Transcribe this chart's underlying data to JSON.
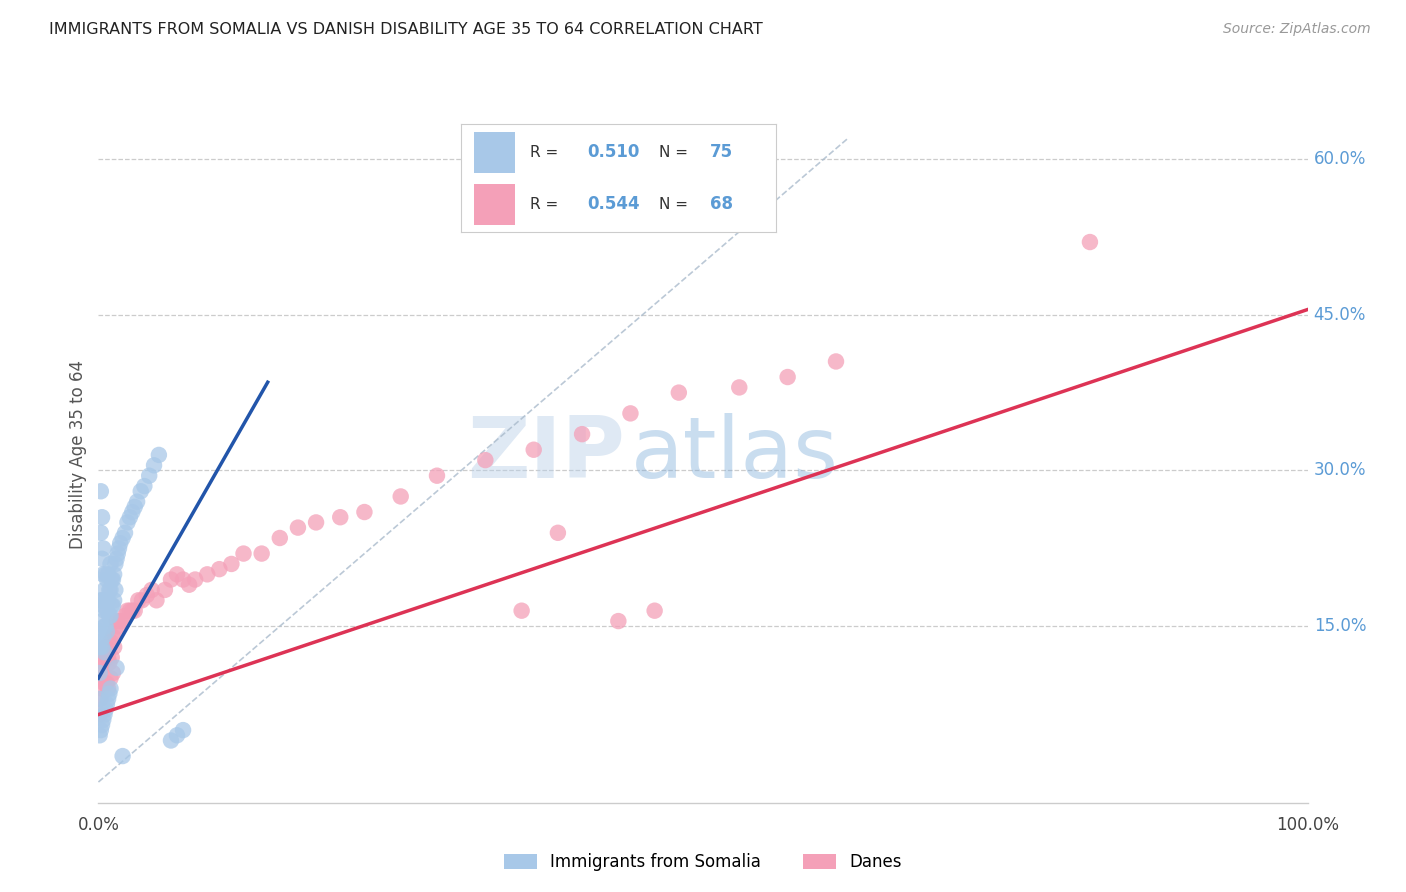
{
  "title": "IMMIGRANTS FROM SOMALIA VS DANISH DISABILITY AGE 35 TO 64 CORRELATION CHART",
  "source": "Source: ZipAtlas.com",
  "ylabel": "Disability Age 35 to 64",
  "legend_label1": "Immigrants from Somalia",
  "legend_label2": "Danes",
  "R1": "0.510",
  "N1": "75",
  "R2": "0.544",
  "N2": "68",
  "color_somalia": "#a8c8e8",
  "color_danes": "#f4a0b8",
  "color_somalia_line": "#2255aa",
  "color_danes_line": "#dd3355",
  "color_diagonal": "#aabbcc",
  "watermark_zip": "ZIP",
  "watermark_atlas": "atlas",
  "xlim": [
    0.0,
    1.0
  ],
  "ylim": [
    -0.02,
    0.65
  ],
  "somalia_line_x0": 0.0,
  "somalia_line_y0": 0.1,
  "somalia_line_x1": 0.14,
  "somalia_line_y1": 0.385,
  "danes_line_x0": 0.0,
  "danes_line_y0": 0.065,
  "danes_line_x1": 1.0,
  "danes_line_y1": 0.455,
  "somalia_x": [
    0.001,
    0.001,
    0.001,
    0.002,
    0.002,
    0.002,
    0.002,
    0.003,
    0.003,
    0.003,
    0.003,
    0.003,
    0.004,
    0.004,
    0.004,
    0.004,
    0.005,
    0.005,
    0.005,
    0.005,
    0.006,
    0.006,
    0.006,
    0.007,
    0.007,
    0.007,
    0.008,
    0.008,
    0.009,
    0.009,
    0.01,
    0.01,
    0.01,
    0.011,
    0.011,
    0.012,
    0.012,
    0.013,
    0.013,
    0.014,
    0.014,
    0.015,
    0.016,
    0.017,
    0.018,
    0.02,
    0.022,
    0.024,
    0.026,
    0.028,
    0.03,
    0.032,
    0.035,
    0.038,
    0.042,
    0.046,
    0.05,
    0.001,
    0.001,
    0.002,
    0.003,
    0.004,
    0.005,
    0.006,
    0.007,
    0.008,
    0.009,
    0.01,
    0.015,
    0.02,
    0.06,
    0.065,
    0.07
  ],
  "somalia_y": [
    0.145,
    0.13,
    0.105,
    0.28,
    0.24,
    0.175,
    0.135,
    0.255,
    0.215,
    0.175,
    0.155,
    0.13,
    0.225,
    0.2,
    0.17,
    0.14,
    0.185,
    0.165,
    0.15,
    0.125,
    0.2,
    0.175,
    0.15,
    0.195,
    0.165,
    0.145,
    0.2,
    0.175,
    0.185,
    0.16,
    0.21,
    0.185,
    0.16,
    0.195,
    0.17,
    0.195,
    0.17,
    0.2,
    0.175,
    0.21,
    0.185,
    0.215,
    0.22,
    0.225,
    0.23,
    0.235,
    0.24,
    0.25,
    0.255,
    0.26,
    0.265,
    0.27,
    0.28,
    0.285,
    0.295,
    0.305,
    0.315,
    0.08,
    0.045,
    0.05,
    0.055,
    0.06,
    0.065,
    0.07,
    0.075,
    0.08,
    0.085,
    0.09,
    0.11,
    0.025,
    0.04,
    0.045,
    0.05
  ],
  "danes_x": [
    0.001,
    0.001,
    0.002,
    0.002,
    0.003,
    0.003,
    0.004,
    0.005,
    0.005,
    0.006,
    0.006,
    0.007,
    0.007,
    0.008,
    0.008,
    0.009,
    0.01,
    0.01,
    0.011,
    0.012,
    0.012,
    0.013,
    0.014,
    0.015,
    0.016,
    0.018,
    0.02,
    0.022,
    0.024,
    0.026,
    0.028,
    0.03,
    0.033,
    0.036,
    0.04,
    0.044,
    0.048,
    0.055,
    0.06,
    0.065,
    0.07,
    0.075,
    0.08,
    0.09,
    0.1,
    0.11,
    0.12,
    0.135,
    0.15,
    0.165,
    0.18,
    0.2,
    0.22,
    0.25,
    0.28,
    0.32,
    0.36,
    0.4,
    0.44,
    0.48,
    0.53,
    0.57,
    0.61,
    0.38,
    0.35,
    0.43,
    0.46,
    0.82
  ],
  "danes_y": [
    0.1,
    0.065,
    0.11,
    0.08,
    0.12,
    0.09,
    0.115,
    0.125,
    0.095,
    0.13,
    0.095,
    0.125,
    0.095,
    0.12,
    0.09,
    0.115,
    0.135,
    0.1,
    0.12,
    0.14,
    0.105,
    0.13,
    0.145,
    0.155,
    0.15,
    0.155,
    0.155,
    0.16,
    0.165,
    0.165,
    0.165,
    0.165,
    0.175,
    0.175,
    0.18,
    0.185,
    0.175,
    0.185,
    0.195,
    0.2,
    0.195,
    0.19,
    0.195,
    0.2,
    0.205,
    0.21,
    0.22,
    0.22,
    0.235,
    0.245,
    0.25,
    0.255,
    0.26,
    0.275,
    0.295,
    0.31,
    0.32,
    0.335,
    0.355,
    0.375,
    0.38,
    0.39,
    0.405,
    0.24,
    0.165,
    0.155,
    0.165,
    0.52
  ]
}
